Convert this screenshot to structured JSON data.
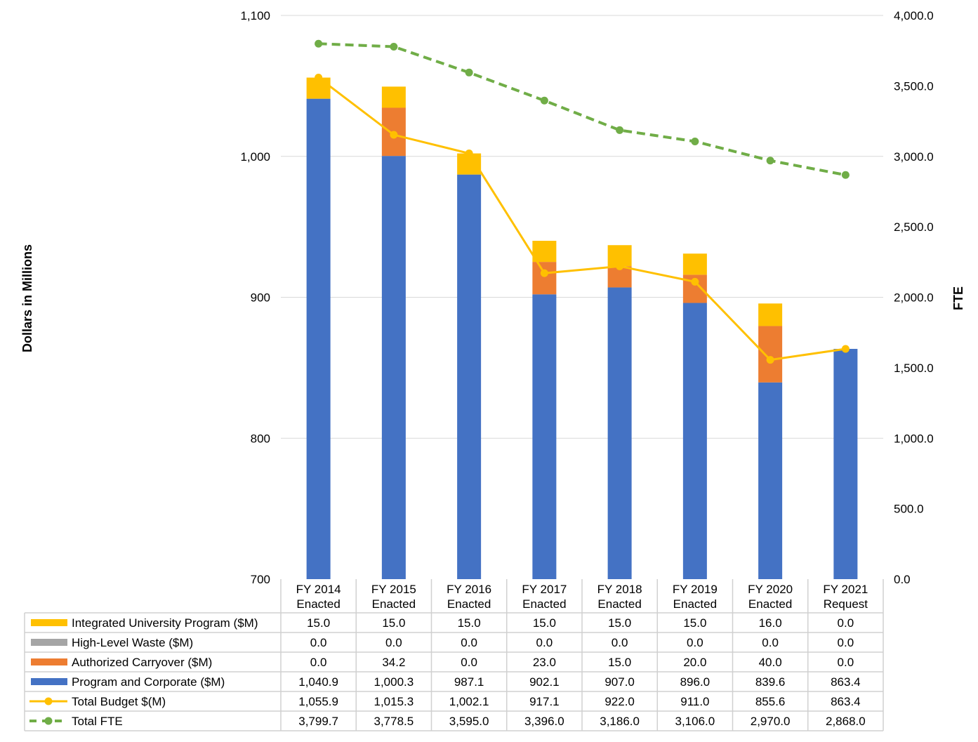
{
  "chart_data": {
    "type": "bar",
    "stacked": true,
    "categories": [
      [
        "FY 2014",
        "Enacted"
      ],
      [
        "FY 2015",
        "Enacted"
      ],
      [
        "FY 2016",
        "Enacted"
      ],
      [
        "FY 2017",
        "Enacted"
      ],
      [
        "FY 2018",
        "Enacted"
      ],
      [
        "FY 2019",
        "Enacted"
      ],
      [
        "FY 2020",
        "Enacted"
      ],
      [
        "FY 2021",
        "Request"
      ]
    ],
    "ylabel": "Dollars in Millions",
    "y2label": "FTE",
    "ylim": [
      700,
      1100
    ],
    "y2lim": [
      0,
      4000
    ],
    "yticks": [
      "700",
      "800",
      "900",
      "1,000",
      "1,100"
    ],
    "y2ticks": [
      "0.0",
      "500.0",
      "1,000.0",
      "1,500.0",
      "2,000.0",
      "2,500.0",
      "3,000.0",
      "3,500.0",
      "4,000.0"
    ],
    "grid": true,
    "legend": "data-table-bottom",
    "series": [
      {
        "name": "Integrated University Program ($M)",
        "kind": "bar",
        "color": "#FFC000",
        "values": [
          15.0,
          15.0,
          15.0,
          15.0,
          15.0,
          15.0,
          16.0,
          0.0
        ],
        "labels": [
          "15.0",
          "15.0",
          "15.0",
          "15.0",
          "15.0",
          "15.0",
          "16.0",
          "0.0"
        ]
      },
      {
        "name": "High-Level Waste ($M)",
        "kind": "bar",
        "color": "#A5A5A5",
        "values": [
          0,
          0,
          0,
          0,
          0,
          0,
          0,
          0
        ],
        "labels": [
          "0.0",
          "0.0",
          "0.0",
          "0.0",
          "0.0",
          "0.0",
          "0.0",
          "0.0"
        ]
      },
      {
        "name": "Authorized Carryover ($M)",
        "kind": "bar",
        "color": "#ED7D31",
        "values": [
          0.0,
          34.2,
          0.0,
          23.0,
          15.0,
          20.0,
          40.0,
          0.0
        ],
        "labels": [
          "0.0",
          "34.2",
          "0.0",
          "23.0",
          "15.0",
          "20.0",
          "40.0",
          "0.0"
        ]
      },
      {
        "name": "Program and Corporate ($M)",
        "kind": "bar",
        "color": "#4472C4",
        "values": [
          1040.9,
          1000.3,
          987.1,
          902.1,
          907.0,
          896.0,
          839.6,
          863.4
        ],
        "labels": [
          "1,040.9",
          "1,000.3",
          "987.1",
          "902.1",
          "907.0",
          "896.0",
          "839.6",
          "863.4"
        ]
      },
      {
        "name": "Total Budget $(M)",
        "kind": "line",
        "axis": "left",
        "color": "#FFC000",
        "values": [
          1055.9,
          1015.3,
          1002.1,
          917.1,
          922.0,
          911.0,
          855.6,
          863.4
        ],
        "labels": [
          "1,055.9",
          "1,015.3",
          "1,002.1",
          "917.1",
          "922.0",
          "911.0",
          "855.6",
          "863.4"
        ]
      },
      {
        "name": "Total FTE",
        "kind": "line",
        "axis": "right",
        "dashed": true,
        "color": "#70AD47",
        "values": [
          3799.7,
          3778.5,
          3595.0,
          3396.0,
          3186.0,
          3106.0,
          2970.0,
          2868.0
        ],
        "labels": [
          "3,799.7",
          "3,778.5",
          "3,595.0",
          "3,396.0",
          "3,186.0",
          "3,106.0",
          "2,970.0",
          "2,868.0"
        ]
      }
    ]
  }
}
